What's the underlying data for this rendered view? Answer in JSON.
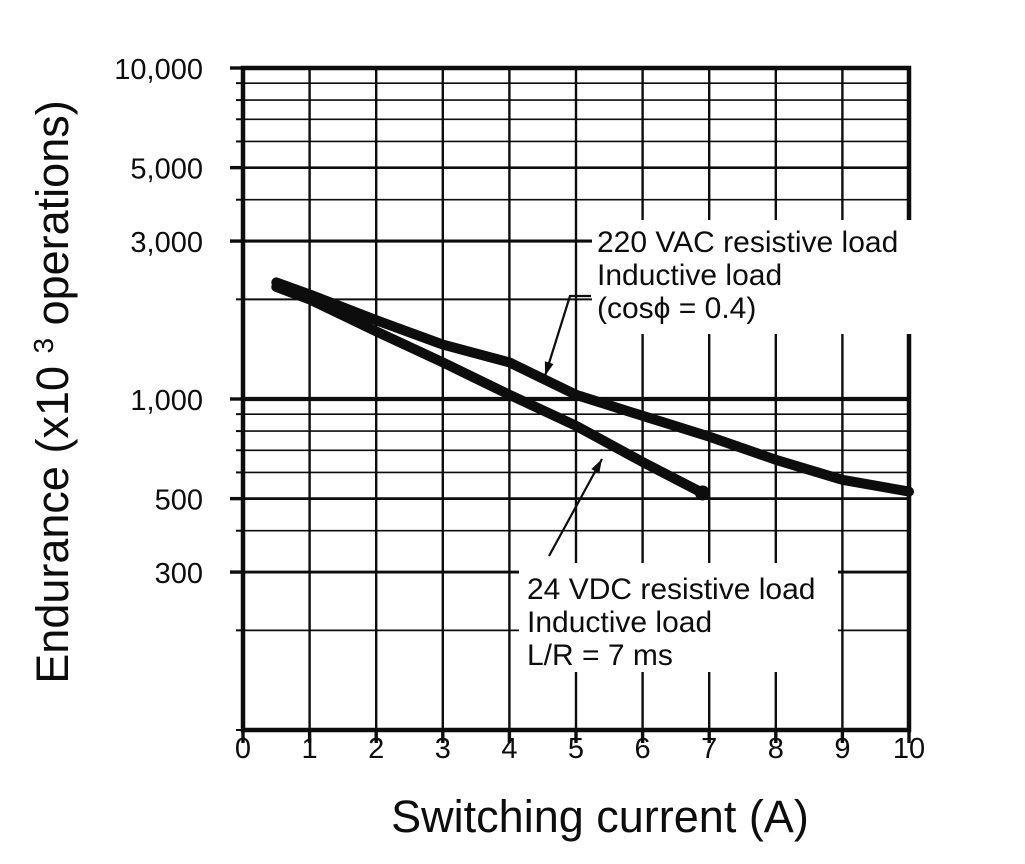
{
  "colors": {
    "ink": "#0d0d0d",
    "background": "#ffffff"
  },
  "chart_data": {
    "type": "line",
    "title": "",
    "xlabel": "Switching current (A)",
    "ylabel": {
      "prefix": "Endurance (x10",
      "sup": "3",
      "suffix": " operations)"
    },
    "grid": true,
    "xlim": [
      0,
      10
    ],
    "ylim": [
      100,
      10000
    ],
    "x_axis": {
      "tick_values": [
        0,
        1,
        2,
        3,
        4,
        5,
        6,
        7,
        8,
        9,
        10
      ],
      "tick_labels": [
        "0",
        "1",
        "2",
        "3",
        "4",
        "5",
        "6",
        "7",
        "8",
        "9",
        "10"
      ]
    },
    "y_axis": {
      "scale": "log",
      "labeled_ticks": [
        {
          "value": 10000,
          "label": "10,000"
        },
        {
          "value": 5000,
          "label": "5,000"
        },
        {
          "value": 3000,
          "label": "3,000"
        },
        {
          "value": 1000,
          "label": "1,000"
        },
        {
          "value": 500,
          "label": "500"
        },
        {
          "value": 300,
          "label": "300"
        }
      ],
      "gridline_values": [
        9000,
        8000,
        7000,
        6000,
        5000,
        4000,
        3000,
        2000,
        1000,
        900,
        800,
        700,
        600,
        500,
        400,
        300,
        200
      ]
    },
    "series": [
      {
        "name": "220 VAC resistive load / Inductive load (cosϕ = 0.4)",
        "points": [
          [
            0.5,
            2250
          ],
          [
            1,
            2070
          ],
          [
            2,
            1730
          ],
          [
            3,
            1460
          ],
          [
            4,
            1290
          ],
          [
            5,
            1030
          ],
          [
            6,
            890
          ],
          [
            7,
            770
          ],
          [
            8,
            655
          ],
          [
            9,
            570
          ],
          [
            9.5,
            547
          ],
          [
            10,
            525
          ]
        ],
        "end_marker": "none"
      },
      {
        "name": "24 VDC resistive load / Inductive load (L/R = 7 ms)",
        "points": [
          [
            0.5,
            2180
          ],
          [
            1,
            2000
          ],
          [
            2,
            1600
          ],
          [
            3,
            1290
          ],
          [
            4,
            1030
          ],
          [
            5,
            830
          ],
          [
            6,
            645
          ],
          [
            6.9,
            520
          ]
        ],
        "end_marker": "dot"
      }
    ],
    "annotations": [
      {
        "lines": [
          "220 VAC resistive load",
          "Inductive load",
          "(cosϕ = 0.4)"
        ]
      },
      {
        "lines": [
          "24 VDC resistive load",
          "Inductive load",
          "L/R = 7 ms"
        ]
      }
    ]
  }
}
